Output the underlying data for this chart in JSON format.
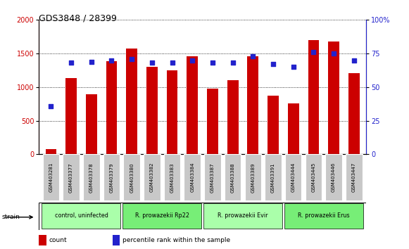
{
  "title": "GDS3848 / 28399",
  "samples": [
    "GSM403281",
    "GSM403377",
    "GSM403378",
    "GSM403379",
    "GSM403380",
    "GSM403382",
    "GSM403383",
    "GSM403384",
    "GSM403387",
    "GSM403388",
    "GSM403389",
    "GSM403391",
    "GSM403444",
    "GSM403445",
    "GSM403446",
    "GSM403447"
  ],
  "counts": [
    80,
    1130,
    890,
    1390,
    1570,
    1300,
    1250,
    1460,
    980,
    1100,
    1460,
    870,
    760,
    1700,
    1680,
    1210
  ],
  "percentiles": [
    36,
    68,
    69,
    70,
    71,
    68,
    68,
    70,
    68,
    68,
    73,
    67,
    65,
    76,
    75,
    70
  ],
  "bar_color": "#cc0000",
  "dot_color": "#2222cc",
  "left_ylim": [
    0,
    2000
  ],
  "right_ylim": [
    0,
    100
  ],
  "left_yticks": [
    0,
    500,
    1000,
    1500,
    2000
  ],
  "right_yticks": [
    0,
    25,
    50,
    75,
    100
  ],
  "right_yticklabels": [
    "0",
    "25",
    "50",
    "75",
    "100%"
  ],
  "groups": [
    {
      "label": "control, uninfected",
      "start": 0,
      "end": 3,
      "color": "#aaffaa"
    },
    {
      "label": "R. prowazekii Rp22",
      "start": 4,
      "end": 7,
      "color": "#77ee77"
    },
    {
      "label": "R. prowazekii Evir",
      "start": 8,
      "end": 11,
      "color": "#aaffaa"
    },
    {
      "label": "R. prowazekii Erus",
      "start": 12,
      "end": 15,
      "color": "#77ee77"
    }
  ],
  "legend_count_label": "count",
  "legend_pct_label": "percentile rank within the sample",
  "strain_label": "strain"
}
